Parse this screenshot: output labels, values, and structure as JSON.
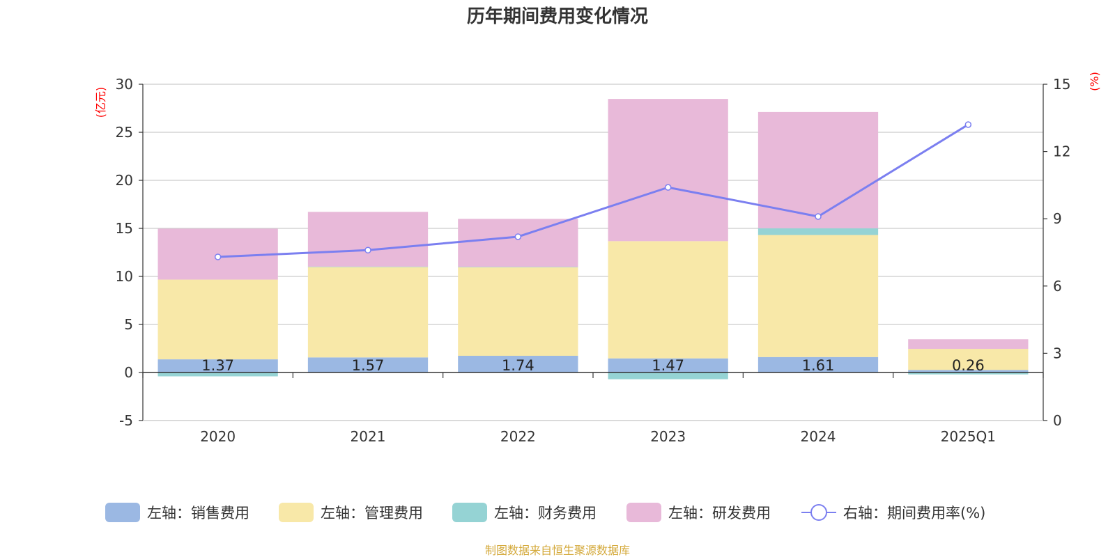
{
  "chart_data": {
    "type": "bar",
    "title": "历年期间费用变化情况",
    "categories": [
      "2020",
      "2021",
      "2022",
      "2023",
      "2024",
      "2025Q1"
    ],
    "left_axis": {
      "unit": "(亿元)",
      "ylim": [
        -5,
        30
      ],
      "ticks": [
        -5,
        0,
        5,
        10,
        15,
        20,
        25,
        30
      ]
    },
    "right_axis": {
      "unit": "(%)",
      "ylim": [
        0,
        15
      ],
      "ticks": [
        0,
        3,
        6,
        9,
        12,
        15
      ]
    },
    "series": [
      {
        "name": "左轴：销售费用",
        "type": "bar",
        "axis": "left",
        "color": "#9bb8e3",
        "values": [
          1.37,
          1.57,
          1.74,
          1.47,
          1.61,
          0.26
        ],
        "labels": [
          "1.37",
          "1.57",
          "1.74",
          "1.47",
          "1.61",
          "0.26"
        ]
      },
      {
        "name": "左轴：管理费用",
        "type": "bar",
        "axis": "left",
        "color": "#f8e8a8",
        "values": [
          8.3,
          9.4,
          9.2,
          12.2,
          12.7,
          2.2
        ]
      },
      {
        "name": "左轴：财务费用",
        "type": "bar",
        "axis": "left",
        "color": "#95d3d4",
        "values": [
          -0.4,
          0.05,
          0.05,
          -0.7,
          0.7,
          -0.2
        ]
      },
      {
        "name": "左轴：研发费用",
        "type": "bar",
        "axis": "left",
        "color": "#e8b9d9",
        "values": [
          5.3,
          5.7,
          5.0,
          14.8,
          12.1,
          1.0
        ]
      },
      {
        "name": "右轴：期间费用率(%)",
        "type": "line",
        "axis": "right",
        "color": "#7b7ff0",
        "values": [
          7.3,
          7.6,
          8.2,
          10.4,
          9.1,
          13.2
        ]
      }
    ],
    "grid": true,
    "legend": "bottom-center"
  },
  "colors": {
    "unit_label": "#ff0000",
    "source_label": "#d4a93a",
    "line_marker_fill": "#ffffff",
    "grid": "#cccccc",
    "axis": "#333333"
  },
  "source": "制图数据来自恒生聚源数据库"
}
